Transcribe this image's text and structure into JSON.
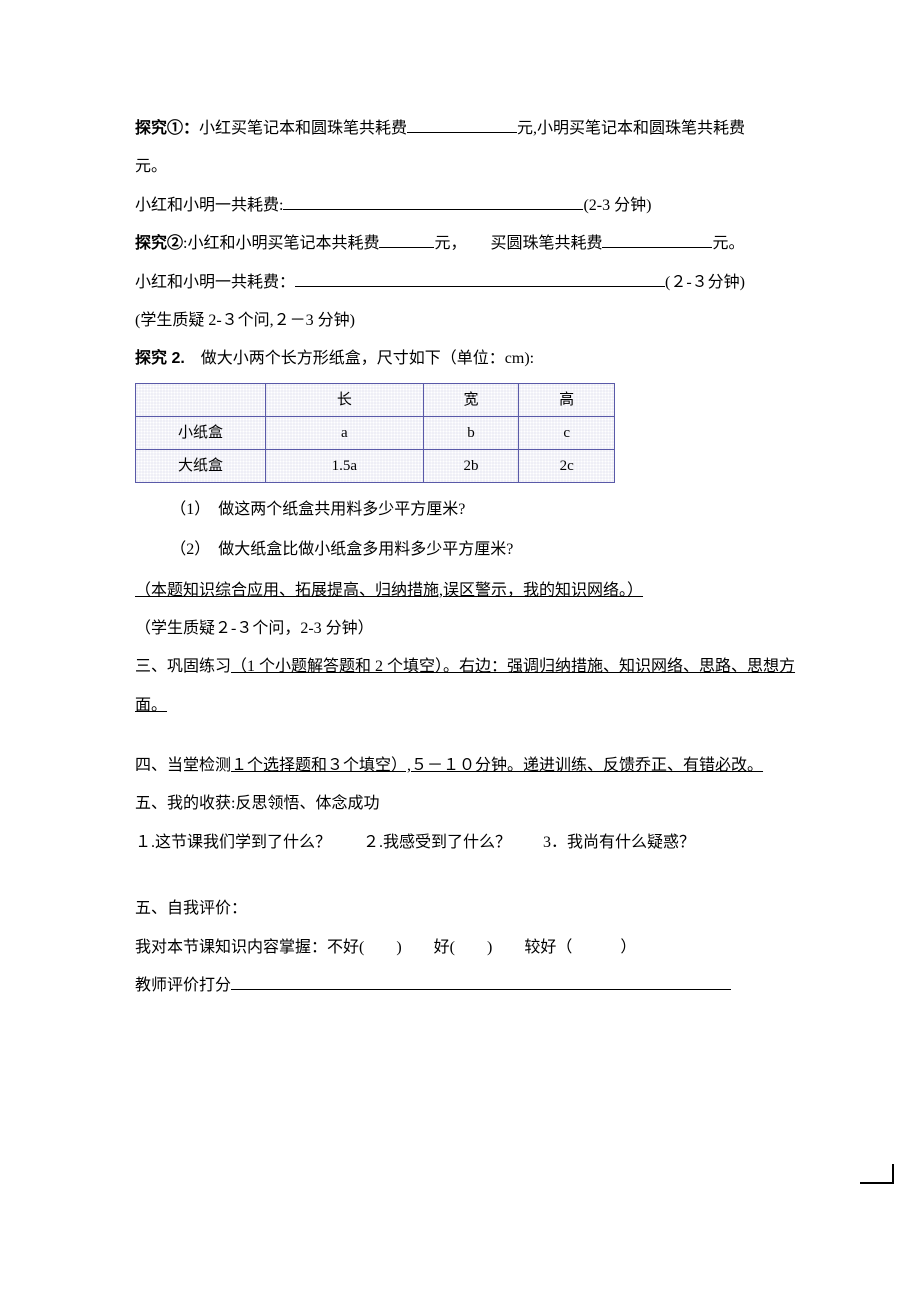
{
  "p1": {
    "lead": "探究①：",
    "t1": "小红买笔记本和圆珠笔共耗费",
    "t2": "元,小明买笔记本和圆珠笔共耗费",
    "t3": "元。",
    "t4": "小红和小明一共耗费:",
    "t5": "(2-3 分钟)"
  },
  "p2": {
    "lead": "探究②",
    "t1": ":小红和小明买笔记本共耗费",
    "t2": "元，　　买圆珠笔共耗费",
    "t3": "元。",
    "t4": "小红和小明一共耗费：",
    "t5": "(２-３分钟)",
    "t6": "(学生质疑 2-３个问,２－3 分钟)"
  },
  "p3": {
    "lead": "探究 2.",
    "intro": "　做大小两个长方形纸盒，尺寸如下（单位：cm):",
    "table": {
      "headers": [
        "",
        "长",
        "宽",
        "高"
      ],
      "rows": [
        [
          "小纸盒",
          "a",
          "b",
          "c"
        ],
        [
          "大纸盒",
          "1.5a",
          "2b",
          "2c"
        ]
      ]
    },
    "q1": "（1）　做这两个纸盒共用料多少平方厘米?",
    "q2": "（2）　做大纸盒比做小纸盒多用料多少平方厘米?"
  },
  "note1": "（本题知识综合应用、拓展提高、归纳措施,误区警示，我的知识网络。）",
  "note2": "（学生质疑２-３个问，2-3 分钟）",
  "sec3": {
    "pre": "三、巩固练习",
    "u": "（1 个小题解答题和 2 个填空）。右边：强调归纳措施、知识网络、思路、思想方面。"
  },
  "sec4": {
    "pre": "四、当堂检测",
    "u": "１个选择题和３个填空）,５－１０分钟。递进训练、反馈乔正、有错必改。"
  },
  "sec5a": "五、我的收获:反思领悟、体念成功",
  "sec5q": "１.这节课我们学到了什么？　　２.我感受到了什么？　　3．我尚有什么疑惑？",
  "sec5b": "五、自我评价：",
  "sec5c": "我对本节课知识内容掌握：不好(　　)　　好(　　)　　较好（　　　）",
  "sec5d": "教师评价打分"
}
